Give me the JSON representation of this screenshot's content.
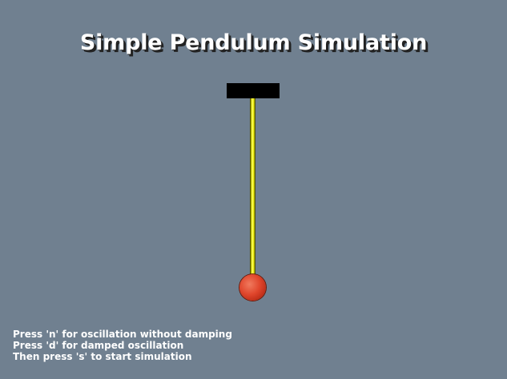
{
  "window": {
    "title": "Simple Pendulum Simulation"
  },
  "colors": {
    "background": "#708090",
    "title_text": "#ffffff",
    "title_shadow": "#222222",
    "pivot": "#000000",
    "rod": "#e6e600",
    "bob": "#e0462c",
    "instruction_text": "#ffffff"
  },
  "instructions": [
    "Press 'n' for oscillation without damping",
    "Press 'd' for damped oscillation",
    "Then press 's' to start simulation"
  ]
}
